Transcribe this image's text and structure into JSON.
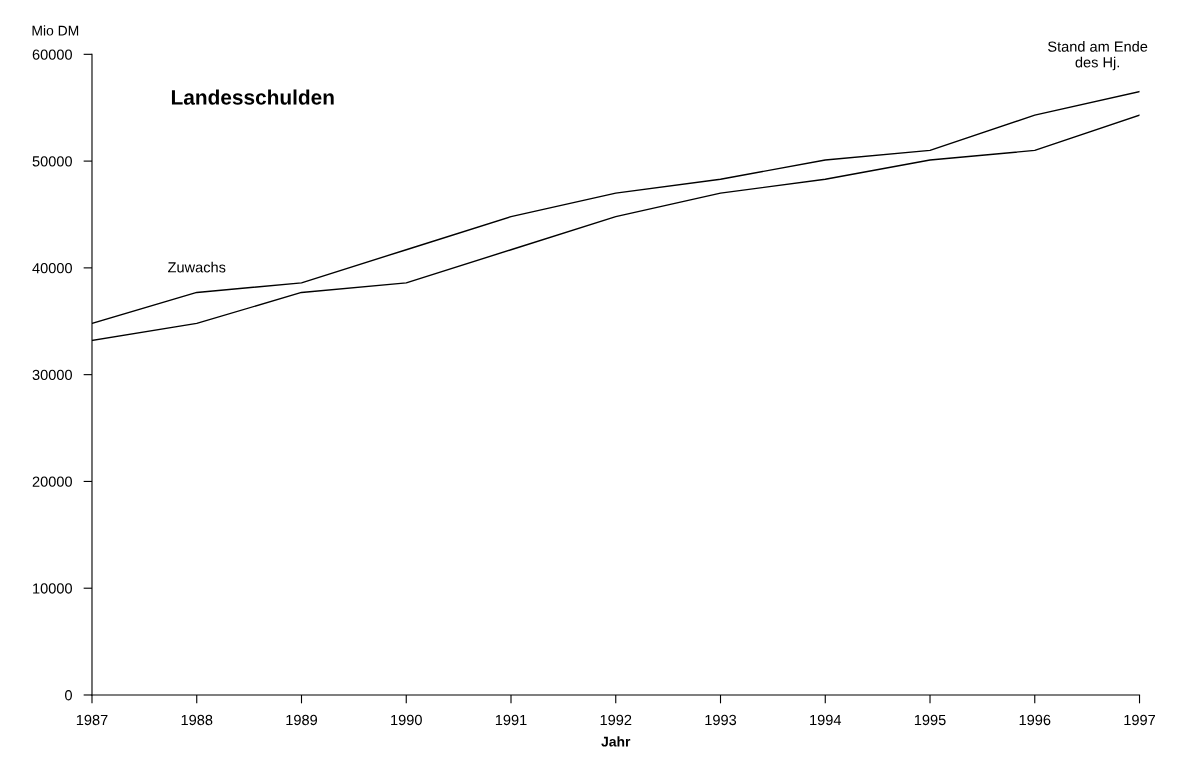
{
  "chart_data": {
    "type": "line",
    "title": "Landesschulden",
    "xlabel": "Jahr",
    "ylabel": "Mio DM",
    "x": [
      1987,
      1988,
      1989,
      1990,
      1991,
      1992,
      1993,
      1994,
      1995,
      1996,
      1997
    ],
    "series": [
      {
        "color": "#000000",
        "values": [
          34800,
          37700,
          38600,
          41700,
          44800,
          47000,
          48300,
          50100,
          51000,
          54300,
          56500
        ]
      },
      {
        "color": "#000000",
        "values": [
          33200,
          34800,
          37700,
          38600,
          41700,
          44800,
          47000,
          48300,
          50100,
          51000,
          54300
        ]
      }
    ],
    "annotations": [
      "Zuwachs",
      "Stand am Ende\ndes Hj."
    ],
    "xlim": [
      1987,
      1997
    ],
    "xticks": [
      1987,
      1988,
      1989,
      1990,
      1991,
      1992,
      1993,
      1994,
      1995,
      1996,
      1997
    ],
    "ylim": [
      0,
      60000
    ],
    "yticks": [
      0,
      10000,
      20000,
      30000,
      40000,
      50000,
      60000
    ],
    "grid": false,
    "legend": false,
    "marker": "none",
    "line_style": "solid"
  }
}
